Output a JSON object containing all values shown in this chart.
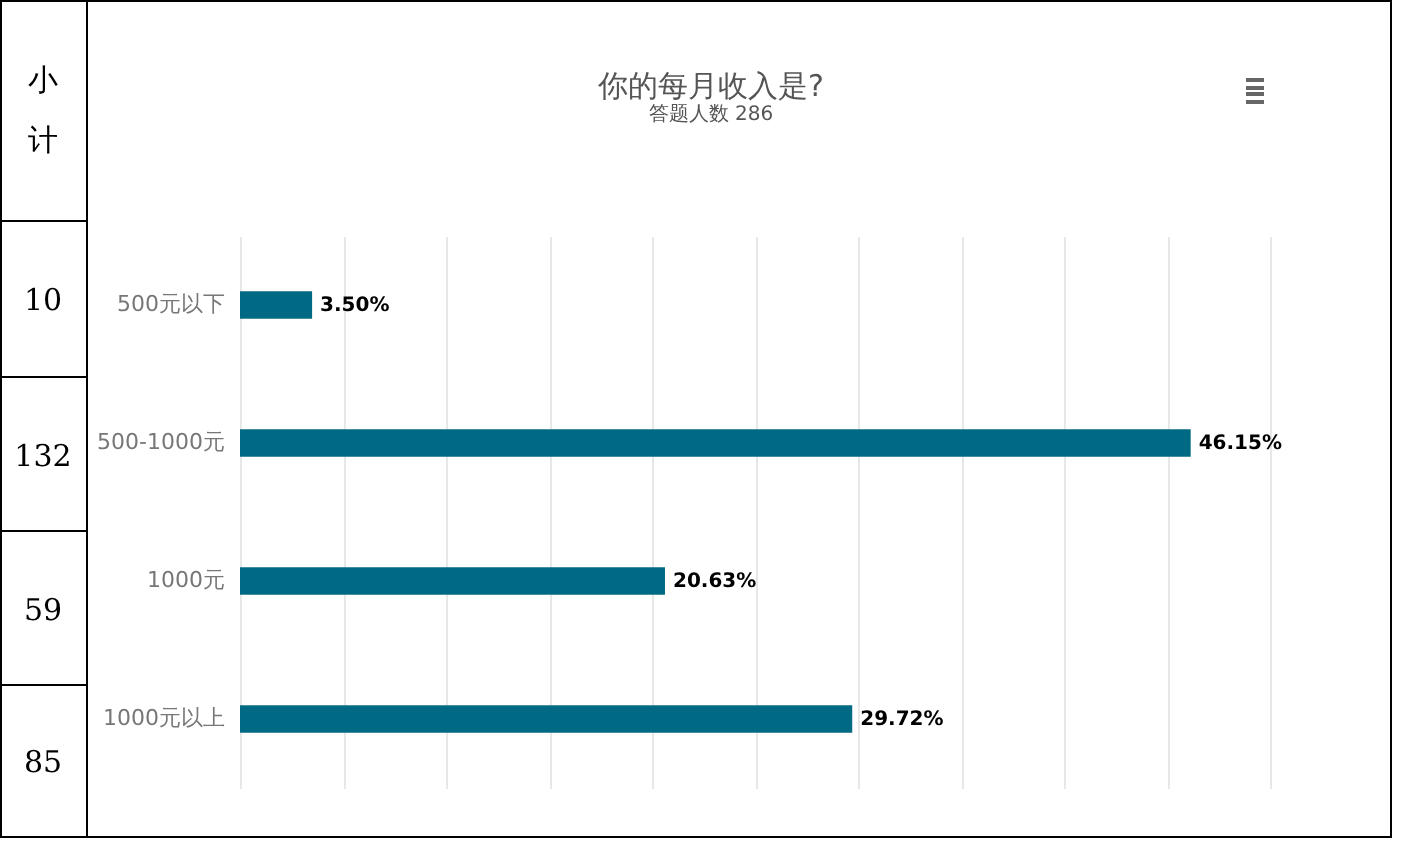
{
  "chart_data": {
    "type": "bar",
    "orientation": "horizontal",
    "title": "你的每月收入是?",
    "subtitle": "答题人数 286",
    "categories": [
      "500元以下",
      "500-1000元",
      "1000元",
      "1000元以上"
    ],
    "values": [
      3.5,
      46.15,
      20.63,
      29.72
    ],
    "value_labels": [
      "3.50%",
      "46.15%",
      "20.63%",
      "29.72%"
    ],
    "color": "#006a84",
    "xlim": [
      0,
      50
    ],
    "xticks": [
      {
        "value": 0,
        "label": null
      },
      {
        "value": 5,
        "label": null
      },
      {
        "value": 10,
        "label": null
      },
      {
        "value": 15,
        "label": null
      },
      {
        "value": 20,
        "label": null
      },
      {
        "value": 25,
        "label": null
      },
      {
        "value": 30,
        "label": null
      },
      {
        "value": 35,
        "label": null
      },
      {
        "value": 40,
        "label": null
      },
      {
        "value": 45,
        "label": null
      },
      {
        "value": 50,
        "label": null
      }
    ],
    "tick_labels": "y",
    "grid": "x",
    "annotations": [
      "小计",
      "10",
      "132",
      "59",
      "85"
    ]
  }
}
